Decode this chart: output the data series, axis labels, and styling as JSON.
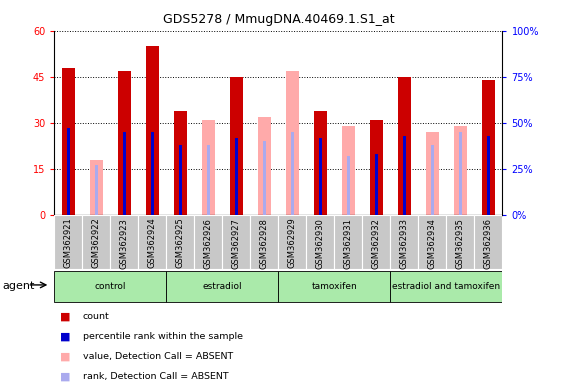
{
  "title": "GDS5278 / MmugDNA.40469.1.S1_at",
  "samples": [
    "GSM362921",
    "GSM362922",
    "GSM362923",
    "GSM362924",
    "GSM362925",
    "GSM362926",
    "GSM362927",
    "GSM362928",
    "GSM362929",
    "GSM362930",
    "GSM362931",
    "GSM362932",
    "GSM362933",
    "GSM362934",
    "GSM362935",
    "GSM362936"
  ],
  "count_present": [
    48,
    null,
    47,
    55,
    34,
    null,
    45,
    null,
    null,
    34,
    null,
    31,
    45,
    null,
    null,
    44
  ],
  "count_absent": [
    null,
    18,
    null,
    null,
    null,
    31,
    null,
    32,
    47,
    null,
    29,
    null,
    null,
    27,
    29,
    null
  ],
  "rank_present_pct": [
    47,
    null,
    45,
    45,
    38,
    null,
    42,
    null,
    null,
    42,
    null,
    33,
    43,
    null,
    null,
    43
  ],
  "rank_absent_pct": [
    null,
    27,
    null,
    null,
    null,
    38,
    null,
    40,
    45,
    null,
    32,
    null,
    null,
    38,
    45,
    null
  ],
  "groups": [
    {
      "label": "control",
      "start": 0,
      "end": 3
    },
    {
      "label": "estradiol",
      "start": 4,
      "end": 7
    },
    {
      "label": "tamoxifen",
      "start": 8,
      "end": 11
    },
    {
      "label": "estradiol and tamoxifen",
      "start": 12,
      "end": 15
    }
  ],
  "ylim_left": [
    0,
    60
  ],
  "ylim_right": [
    0,
    100
  ],
  "yticks_left": [
    0,
    15,
    30,
    45,
    60
  ],
  "yticks_right": [
    0,
    25,
    50,
    75,
    100
  ],
  "color_count_present": "#cc0000",
  "color_count_absent": "#ffaaaa",
  "color_rank_present": "#0000cc",
  "color_rank_absent": "#aaaaee",
  "group_color_light": "#aaeaaa",
  "group_color_dark": "#66dd66",
  "gray_sample_bg": "#c8c8c8"
}
